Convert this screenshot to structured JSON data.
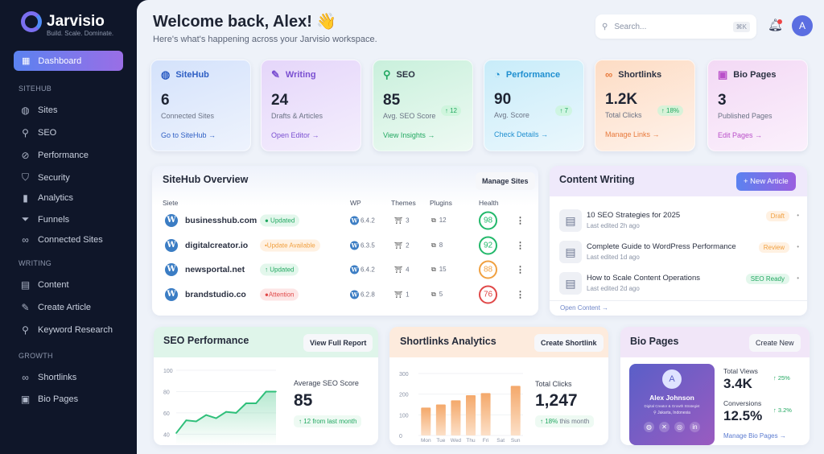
{
  "app": {
    "name": "Jarvisio",
    "tagline": "Build. Scale. Dominate."
  },
  "sidebar": {
    "active": {
      "label": "Dashboard",
      "icon": "grid-icon"
    },
    "sections": [
      {
        "title": "SITEHUB",
        "items": [
          {
            "label": "Sites",
            "icon": "globe-icon"
          },
          {
            "label": "SEO",
            "icon": "search-icon"
          },
          {
            "label": "Performance",
            "icon": "gauge-icon"
          },
          {
            "label": "Security",
            "icon": "shield-icon"
          },
          {
            "label": "Analytics",
            "icon": "bar-chart-icon"
          },
          {
            "label": "Funnels",
            "icon": "funnel-icon"
          },
          {
            "label": "Connected Sites",
            "icon": "link-icon"
          }
        ]
      },
      {
        "title": "WRITING",
        "items": [
          {
            "label": "Content",
            "icon": "document-icon"
          },
          {
            "label": "Create Article",
            "icon": "pen-icon"
          },
          {
            "label": "Keyword Research",
            "icon": "search-icon"
          }
        ]
      },
      {
        "title": "GROWTH",
        "items": [
          {
            "label": "Shortlinks",
            "icon": "link-icon"
          },
          {
            "label": "Bio Pages",
            "icon": "bio-page-icon"
          }
        ]
      }
    ]
  },
  "header": {
    "title": "Welcome back, Alex! 👋",
    "subtitle": "Here's what's happening across your Jarvisio workspace.",
    "search_placeholder": "Search...",
    "shortcut": "⌘K",
    "avatar": "A"
  },
  "cards": [
    {
      "title": "SiteHub",
      "value": "6",
      "label": "Connected Sites",
      "link": "Go to SiteHub →",
      "delta": "",
      "color": "#2f5fc4"
    },
    {
      "title": "Writing",
      "value": "24",
      "label": "Drafts & Articles",
      "link": "Open Editor →",
      "delta": "",
      "color": "#7a4fd1"
    },
    {
      "title": "SEO",
      "value": "85",
      "label": "Avg. SEO Score",
      "link": "View Insights →",
      "delta": "↑ 12",
      "color": "#22a861"
    },
    {
      "title": "Performance",
      "value": "90",
      "label": "Avg. Score",
      "link": "Check Details →",
      "delta": "↑ 7",
      "color": "#1f8fd0"
    },
    {
      "title": "Shortlinks",
      "value": "1.2K",
      "label": "Total Clicks",
      "link": "Manage Links →",
      "delta": "↑ 18%",
      "color": "#e87a3c"
    },
    {
      "title": "Bio Pages",
      "value": "3",
      "label": "Published Pages",
      "link": "Edit Pages →",
      "delta": "",
      "color": "#b94fc9"
    }
  ],
  "sitehub": {
    "title": "SiteHub Overview",
    "button": "Manage Sites",
    "columns": [
      "Siete",
      "WP",
      "Themes",
      "Plugins",
      "Health"
    ],
    "rows": [
      {
        "site": "businesshub.com",
        "status": "● Updated",
        "status_type": "ok",
        "wp": "6.4.2",
        "themes": "3",
        "plugins": "12",
        "health": "98"
      },
      {
        "site": "digitalcreator.io",
        "status": "•Update Available",
        "status_type": "warn",
        "wp": "6.3.5",
        "themes": "2",
        "plugins": "8",
        "health": "92"
      },
      {
        "site": "newsportal.net",
        "status": "↑ Updated",
        "status_type": "ok",
        "wp": "6.4.2",
        "themes": "4",
        "plugins": "15",
        "health": "88"
      },
      {
        "site": "brandstudio.co",
        "status": "●Attention",
        "status_type": "bad",
        "wp": "6.2.8",
        "themes": "1",
        "plugins": "5",
        "health": "76"
      }
    ]
  },
  "content": {
    "title": "Content Writing",
    "button": "+ New Article",
    "footer": "Open Content →",
    "articles": [
      {
        "title": "10 SEO Strategies for 2025",
        "edited": "Last edited 2h ago",
        "status": "Draft"
      },
      {
        "title": "Complete Guide to WordPress Performance",
        "edited": "Last edited 1d ago",
        "status": "Review"
      },
      {
        "title": "How to Scale Content Operations",
        "edited": "Last edited 2d ago",
        "status": "SEO Ready"
      }
    ]
  },
  "seo_perf": {
    "title": "SEO Performance",
    "button": "View Full Report",
    "metric_label": "Average SEO Score",
    "metric": "85",
    "delta": "↑ 12 from last month"
  },
  "shortlinks": {
    "title": "Shortlinks Analytics",
    "button": "Create Shortlink",
    "metric_label": "Total Clicks",
    "metric": "1,247",
    "delta_pct": "↑ 18%",
    "delta_text": "this month"
  },
  "bio": {
    "title": "Bio Pages",
    "button": "Create New",
    "profile": {
      "initial": "A",
      "name": "Alex Johnson",
      "role": "Digital Creator & Growth Strategist",
      "location": "Jakarta, Indonesia"
    },
    "views_label": "Total Views",
    "views": "3.4K",
    "views_delta": "↑ 25%",
    "conv_label": "Conversions",
    "conv": "12.5%",
    "conv_delta": "↑ 3.2%",
    "link": "Manage Bio Pages →"
  },
  "chart_data": [
    {
      "type": "area",
      "yticks": [
        40,
        60,
        80,
        100
      ],
      "ylim": [
        35,
        100
      ],
      "values": [
        41,
        53,
        52,
        58,
        55,
        61,
        60,
        69,
        69,
        80,
        80
      ],
      "color": "#2fbf7a",
      "grid": true
    },
    {
      "type": "bar",
      "categories": [
        "Mon",
        "Tue",
        "Wed",
        "Thu",
        "Fri",
        "Sat",
        "Sun"
      ],
      "values": [
        135,
        150,
        170,
        195,
        205,
        null,
        240
      ],
      "yticks": [
        0,
        100,
        200,
        300
      ],
      "ylim": [
        0,
        300
      ],
      "color": "#f4a86a",
      "grid": true
    }
  ]
}
